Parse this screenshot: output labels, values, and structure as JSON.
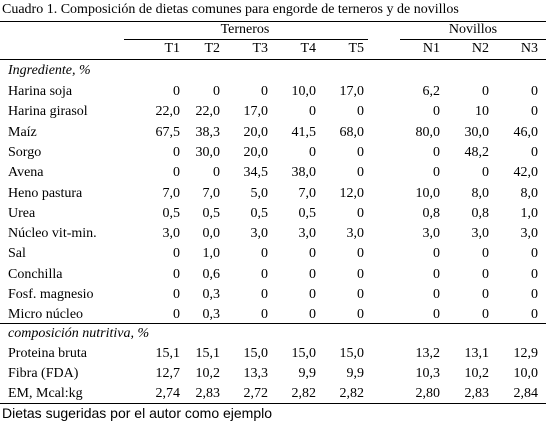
{
  "title": "Cuadro 1. Composición de dietas comunes para engorde de terneros y de novillos",
  "groups": [
    {
      "label": "Terneros"
    },
    {
      "label": "Novillos"
    }
  ],
  "columns": [
    "T1",
    "T2",
    "T3",
    "T4",
    "T5",
    "N1",
    "N2",
    "N3"
  ],
  "section_ingredients": "Ingrediente, %",
  "ingredients": [
    {
      "label": "Harina soja",
      "values": [
        "0",
        "0",
        "0",
        "10,0",
        "17,0",
        "6,2",
        "0",
        "0"
      ]
    },
    {
      "label": "Harina girasol",
      "values": [
        "22,0",
        "22,0",
        "17,0",
        "0",
        "0",
        "0",
        "10",
        "0"
      ]
    },
    {
      "label": "Maíz",
      "values": [
        "67,5",
        "38,3",
        "20,0",
        "41,5",
        "68,0",
        "80,0",
        "30,0",
        "46,0"
      ]
    },
    {
      "label": "Sorgo",
      "values": [
        "0",
        "30,0",
        "20,0",
        "0",
        "0",
        "0",
        "48,2",
        "0"
      ]
    },
    {
      "label": "Avena",
      "values": [
        "0",
        "0",
        "34,5",
        "38,0",
        "0",
        "0",
        "0",
        "42,0"
      ]
    },
    {
      "label": "Heno pastura",
      "values": [
        "7,0",
        "7,0",
        "5,0",
        "7,0",
        "12,0",
        "10,0",
        "8,0",
        "8,0"
      ]
    },
    {
      "label": "Urea",
      "values": [
        "0,5",
        "0,5",
        "0,5",
        "0,5",
        "0",
        "0,8",
        "0,8",
        "1,0"
      ]
    },
    {
      "label": "Núcleo vit-min.",
      "values": [
        "3,0",
        "0,0",
        "3,0",
        "3,0",
        "3,0",
        "3,0",
        "3,0",
        "3,0"
      ]
    },
    {
      "label": "Sal",
      "values": [
        "0",
        "1,0",
        "0",
        "0",
        "0",
        "0",
        "0",
        "0"
      ]
    },
    {
      "label": "Conchilla",
      "values": [
        "0",
        "0,6",
        "0",
        "0",
        "0",
        "0",
        "0",
        "0"
      ]
    },
    {
      "label": "Fosf. magnesio",
      "values": [
        "0",
        "0,3",
        "0",
        "0",
        "0",
        "0",
        "0",
        "0"
      ]
    },
    {
      "label": "Micro núcleo",
      "values": [
        "0",
        "0,3",
        "0",
        "0",
        "0",
        "0",
        "0",
        "0"
      ]
    }
  ],
  "section_nutrition": "composición nutritiva, %",
  "nutrition": [
    {
      "label": "Proteina bruta",
      "values": [
        "15,1",
        "15,1",
        "15,0",
        "15,0",
        "15,0",
        "13,2",
        "13,1",
        "12,9"
      ]
    },
    {
      "label": "Fibra (FDA)",
      "values": [
        "12,7",
        "10,2",
        "13,3",
        "9,9",
        "9,9",
        "10,3",
        "10,2",
        "10,0"
      ]
    },
    {
      "label": "EM, Mcal:kg",
      "values": [
        "2,74",
        "2,83",
        "2,72",
        "2,82",
        "2,82",
        "2,80",
        "2,83",
        "2,84"
      ]
    }
  ],
  "footnote": "Dietas sugeridas por el autor como ejemplo"
}
